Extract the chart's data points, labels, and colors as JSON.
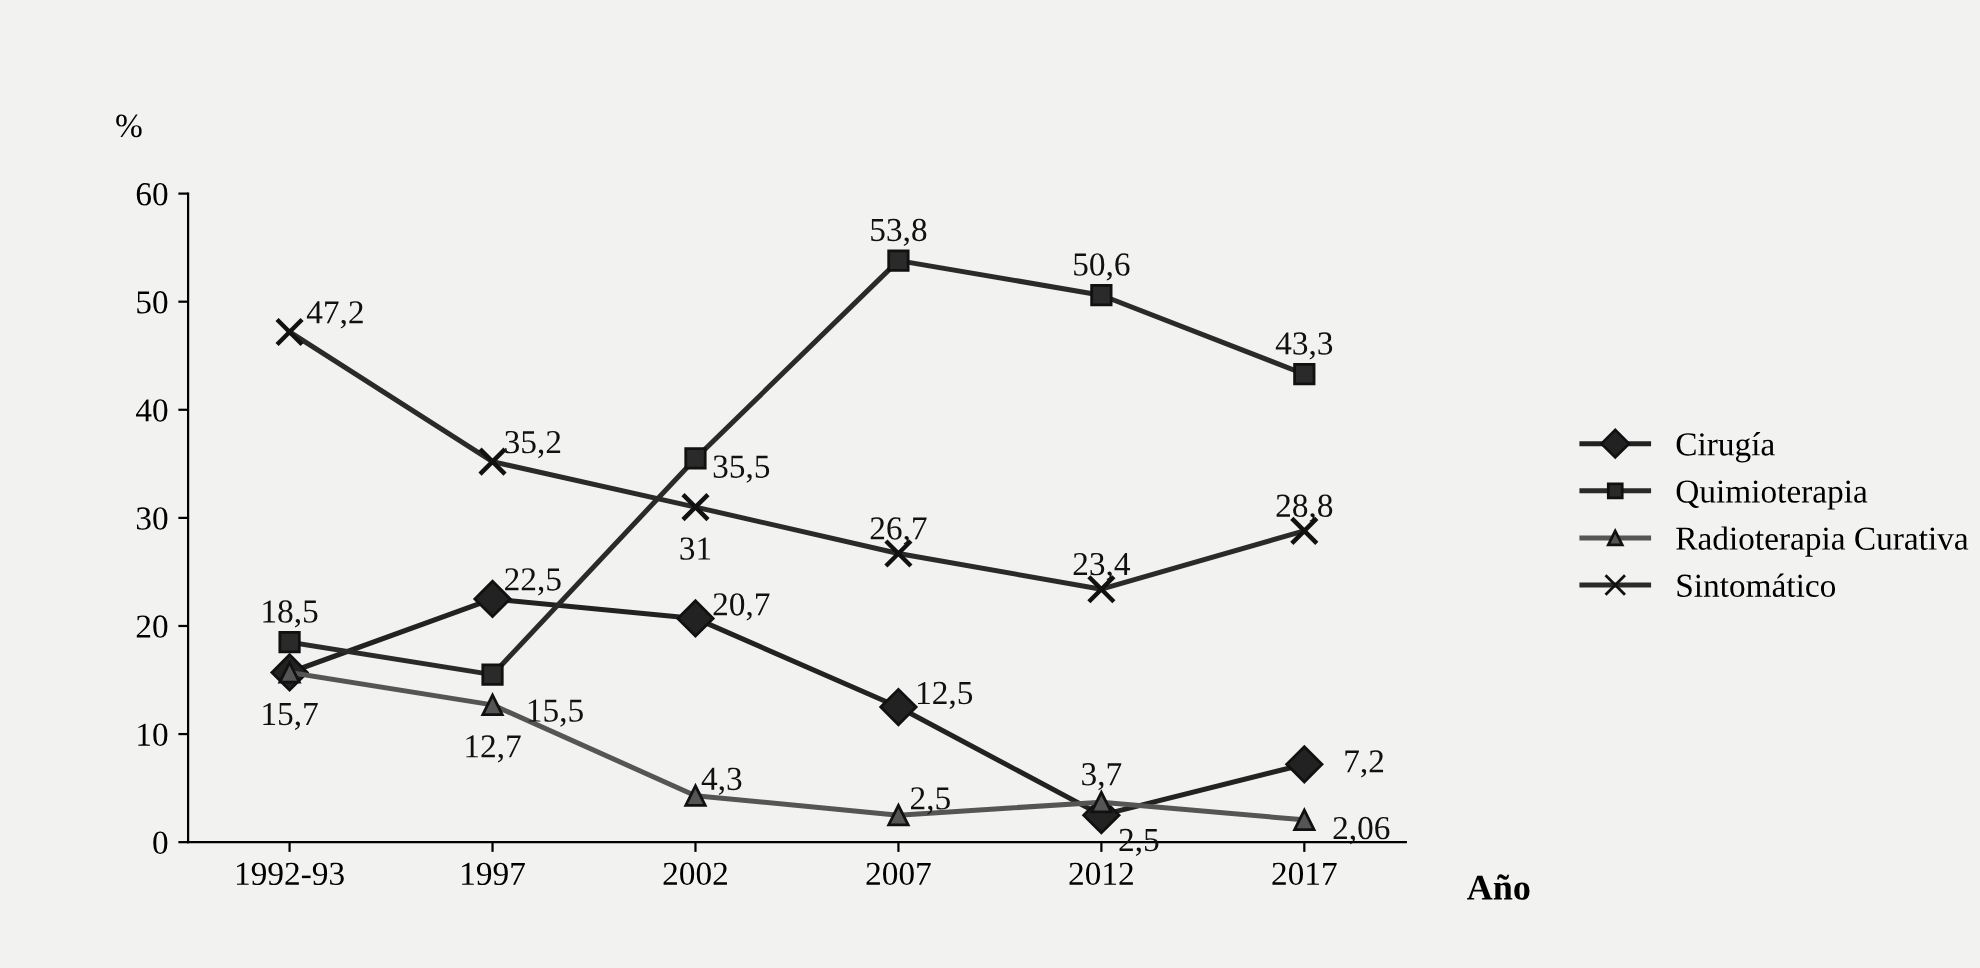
{
  "chart_data": {
    "type": "line",
    "ylabel": "%",
    "xlabel": "Año",
    "categories": [
      "1992-93",
      "1997",
      "2002",
      "2007",
      "2012",
      "2017"
    ],
    "ylim": [
      0,
      60
    ],
    "yticks": [
      0,
      10,
      20,
      30,
      40,
      50,
      60
    ],
    "grid": false,
    "legend": "right",
    "series": [
      {
        "name": "Cirugía",
        "color": "#222222",
        "marker": "diamond",
        "values": [
          15.7,
          22.5,
          20.7,
          12.5,
          2.5,
          7.2
        ],
        "value_labels": [
          null,
          "22,5",
          "20,7",
          "12,5",
          "2,5",
          "7,2"
        ]
      },
      {
        "name": "Quimioterapia",
        "color": "#2a2a2a",
        "marker": "square",
        "values": [
          18.5,
          15.5,
          35.5,
          53.8,
          50.6,
          43.3
        ],
        "value_labels": [
          "18,5",
          "15,5",
          "35,5",
          "53,8",
          "50,6",
          "43,3"
        ]
      },
      {
        "name": "Radioterapia Curativa",
        "color": "#555555",
        "marker": "triangle",
        "values": [
          15.7,
          12.7,
          4.3,
          2.5,
          3.7,
          2.06
        ],
        "value_labels": [
          "15,7",
          "12,7",
          "4,3",
          "2,5",
          "3,7",
          "2,06"
        ]
      },
      {
        "name": "Sintomático",
        "color": "#2a2a2a",
        "marker": "cross",
        "values": [
          47.2,
          35.2,
          31,
          26.7,
          23.4,
          28.8
        ],
        "value_labels": [
          "47,2",
          "35,2",
          "31",
          "26,7",
          "23,4",
          "28,8"
        ]
      }
    ]
  }
}
